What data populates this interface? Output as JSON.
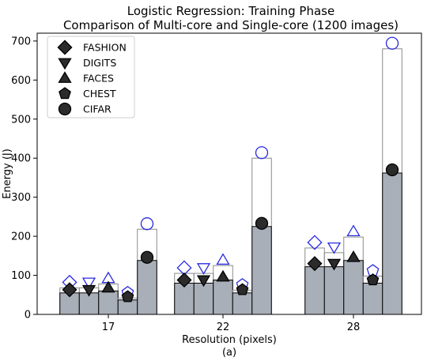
{
  "chart_data": {
    "type": "bar",
    "title_line1": "Logistic Regression: Training Phase",
    "title_line2": "Comparison of Multi-core and Single-core (1200 images)",
    "xlabel": "Resolution (pixels)",
    "sublabel": "(a)",
    "ylabel": "Energy (J)",
    "ylim": [
      0,
      720
    ],
    "yticks": [
      0,
      100,
      200,
      300,
      400,
      500,
      600,
      700
    ],
    "categories": [
      "17",
      "22",
      "28"
    ],
    "grid": false,
    "legend_position": "top-left",
    "colors": {
      "multi_bar_fill": "#a9afb8",
      "single_bar_edge": "#8a8a8a",
      "multi_marker": "#2b2b2b",
      "single_marker": "#2a2adf"
    },
    "series": [
      {
        "name": "FASHION",
        "marker": "diamond",
        "multi_core": [
          55,
          80,
          122
        ],
        "single_core": [
          68,
          105,
          170
        ]
      },
      {
        "name": "DIGITS",
        "marker": "triangle-down",
        "multi_core": [
          55,
          80,
          122
        ],
        "single_core": [
          68,
          105,
          158
        ]
      },
      {
        "name": "FACES",
        "marker": "triangle-up",
        "multi_core": [
          60,
          88,
          138
        ],
        "single_core": [
          78,
          125,
          198
        ]
      },
      {
        "name": "CHEST",
        "marker": "pentagon",
        "multi_core": [
          37,
          55,
          80
        ],
        "single_core": [
          42,
          62,
          98
        ]
      },
      {
        "name": "CIFAR",
        "marker": "circle",
        "multi_core": [
          138,
          225,
          362
        ],
        "single_core": [
          218,
          400,
          680
        ]
      }
    ]
  }
}
